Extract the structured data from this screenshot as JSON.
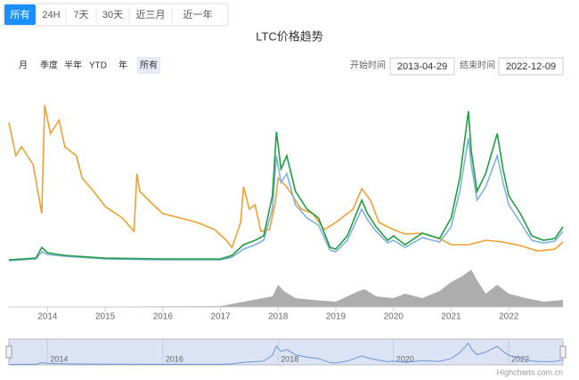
{
  "toolbar": {
    "periods": [
      "所有",
      "24H",
      "7天",
      "30天",
      "近三月",
      "近一年"
    ],
    "active": 0
  },
  "range_selector": {
    "buttons": [
      "月",
      "季度",
      "半年",
      "YTD",
      "年",
      "所有"
    ],
    "selected": 5,
    "start_label": "开始时间",
    "start": "2013-04-29",
    "end_label": "结束时间",
    "end": "2022-12-09"
  },
  "credit": "Highcharts.com.cn",
  "chart_data": {
    "type": "line",
    "title": "LTC价格趋势",
    "xlim": [
      2013.33,
      2022.94
    ],
    "xticks": [
      2014,
      2015,
      2016,
      2017,
      2018,
      2019,
      2020,
      2021,
      2022
    ],
    "ylim": [
      0,
      195
    ],
    "series": [
      {
        "color": "#f0a030",
        "x": [
          2013.33,
          2013.45,
          2013.55,
          2013.75,
          2013.9,
          2013.95,
          2014.05,
          2014.2,
          2014.3,
          2014.5,
          2014.6,
          2014.8,
          2015.0,
          2015.3,
          2015.5,
          2015.55,
          2015.6,
          2015.8,
          2016.0,
          2016.3,
          2016.6,
          2016.9,
          2017.1,
          2017.2,
          2017.35,
          2017.4,
          2017.5,
          2017.6,
          2017.7,
          2017.85,
          2017.95,
          2018.0,
          2018.15,
          2018.4,
          2018.6,
          2018.8,
          2019.0,
          2019.3,
          2019.45,
          2019.6,
          2019.75,
          2020.0,
          2020.2,
          2020.5,
          2020.8,
          2021.0,
          2021.3,
          2021.6,
          2021.9,
          2022.2,
          2022.5,
          2022.8,
          2022.94
        ],
        "values": [
          157,
          120,
          130,
          110,
          55,
          177,
          145,
          160,
          130,
          120,
          95,
          80,
          63,
          50,
          35,
          100,
          80,
          67,
          55,
          50,
          45,
          37,
          25,
          17,
          45,
          85,
          60,
          65,
          35,
          37,
          67,
          95,
          85,
          60,
          55,
          37,
          45,
          60,
          83,
          70,
          45,
          37,
          32,
          33,
          27,
          20,
          20,
          25,
          23,
          19,
          13,
          15,
          23
        ]
      },
      {
        "color": "#7fb0e0",
        "x": [
          2013.33,
          2013.8,
          2013.9,
          2014.0,
          2014.3,
          2015,
          2016,
          2017,
          2017.2,
          2017.4,
          2017.6,
          2017.75,
          2017.9,
          2017.97,
          2018.05,
          2018.15,
          2018.3,
          2018.5,
          2018.7,
          2018.9,
          2019.0,
          2019.2,
          2019.45,
          2019.55,
          2019.7,
          2019.9,
          2020.0,
          2020.2,
          2020.5,
          2020.8,
          2021.0,
          2021.15,
          2021.3,
          2021.35,
          2021.45,
          2021.6,
          2021.8,
          2021.9,
          2022.0,
          2022.2,
          2022.4,
          2022.6,
          2022.8,
          2022.94
        ],
        "values": [
          2,
          4,
          12,
          9,
          7,
          4,
          3,
          3,
          6,
          15,
          20,
          25,
          60,
          120,
          90,
          100,
          65,
          50,
          42,
          14,
          12,
          25,
          60,
          48,
          35,
          22,
          25,
          17,
          28,
          23,
          40,
          80,
          140,
          110,
          70,
          85,
          120,
          90,
          65,
          45,
          25,
          22,
          24,
          35
        ]
      },
      {
        "color": "#1e9e3e",
        "x": [
          2013.33,
          2013.8,
          2013.9,
          2014.0,
          2014.3,
          2015,
          2016,
          2017,
          2017.2,
          2017.4,
          2017.6,
          2017.75,
          2017.9,
          2017.97,
          2018.05,
          2018.15,
          2018.3,
          2018.5,
          2018.7,
          2018.9,
          2019.0,
          2019.2,
          2019.45,
          2019.55,
          2019.7,
          2019.9,
          2020.0,
          2020.2,
          2020.5,
          2020.8,
          2021.0,
          2021.15,
          2021.3,
          2021.35,
          2021.45,
          2021.6,
          2021.8,
          2021.9,
          2022.0,
          2022.2,
          2022.4,
          2022.6,
          2022.8,
          2022.94
        ],
        "values": [
          3,
          5,
          17,
          11,
          8,
          5,
          4,
          4,
          8,
          20,
          25,
          30,
          75,
          147,
          105,
          120,
          80,
          60,
          50,
          17,
          15,
          30,
          70,
          55,
          40,
          25,
          30,
          20,
          33,
          27,
          50,
          95,
          170,
          125,
          80,
          100,
          145,
          105,
          75,
          55,
          30,
          25,
          27,
          40
        ]
      }
    ],
    "volume": {
      "color": "#999999",
      "ylim": [
        0,
        45
      ],
      "x": [
        2013.33,
        2015,
        2017,
        2017.9,
        2018.0,
        2018.1,
        2018.3,
        2018.6,
        2019.0,
        2019.4,
        2019.5,
        2019.7,
        2020.0,
        2020.2,
        2020.5,
        2020.8,
        2021.0,
        2021.2,
        2021.35,
        2021.45,
        2021.6,
        2021.8,
        2022.0,
        2022.3,
        2022.6,
        2022.94
      ],
      "values": [
        0.5,
        0.5,
        1,
        12,
        25,
        18,
        10,
        8,
        6,
        18,
        20,
        12,
        10,
        15,
        10,
        18,
        28,
        35,
        42,
        30,
        15,
        25,
        15,
        10,
        6,
        8
      ]
    },
    "navigator": {
      "xticks": [
        2014,
        2016,
        2018,
        2020,
        2022
      ]
    }
  }
}
